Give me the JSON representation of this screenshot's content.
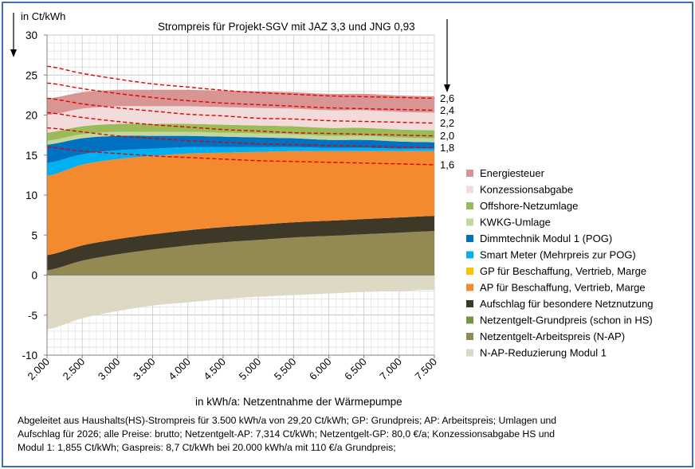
{
  "chart_data": {
    "type": "area",
    "title": "Strompreis für Projekt-SGV mit JAZ 3,3 und JNG  0,93",
    "ylabel": "in Ct/kWh",
    "xlabel": "in kWh/a: Netzentnahme der Wärmepumpe",
    "ylim": [
      -10,
      30
    ],
    "xlim": [
      2000,
      7500
    ],
    "y_ticks": [
      "30",
      "25",
      "20",
      "15",
      "10",
      "5",
      "0",
      "-5",
      "-10"
    ],
    "y_tick_values": [
      30,
      25,
      20,
      15,
      10,
      5,
      0,
      -5,
      -10
    ],
    "x_ticks": [
      "2.000",
      "2.500",
      "3.000",
      "3.500",
      "4.000",
      "4.500",
      "5.000",
      "5.500",
      "6.000",
      "6.500",
      "7.000",
      "7.500"
    ],
    "x_tick_values": [
      2000,
      2500,
      3000,
      3500,
      4000,
      4500,
      5000,
      5500,
      6000,
      6500,
      7000,
      7500
    ],
    "x": [
      2000,
      2500,
      3000,
      3500,
      4000,
      4500,
      5000,
      5500,
      6000,
      6500,
      7000,
      7500
    ],
    "series": [
      {
        "name": "N-AP-Reduzierung Modul 1",
        "color": "#ddd9c4",
        "values": [
          -6.8,
          -5.4,
          -4.5,
          -3.8,
          -3.4,
          -3.0,
          -2.7,
          -2.5,
          -2.3,
          -2.1,
          -2.0,
          -1.8
        ]
      },
      {
        "name": "Netzentgelt-Arbeitspreis (N-AP)",
        "color": "#938953",
        "values": [
          0.6,
          1.8,
          2.6,
          3.2,
          3.7,
          4.1,
          4.4,
          4.7,
          4.9,
          5.1,
          5.3,
          5.5
        ]
      },
      {
        "name": "Netzentgelt-Grundpreis (schon in HS)",
        "color": "#77933c",
        "values": [
          0.0,
          0.0,
          0.0,
          0.0,
          0.0,
          0.0,
          0.0,
          0.0,
          0.0,
          0.0,
          0.0,
          0.0
        ]
      },
      {
        "name": "Aufschlag für besondere Netznutzung",
        "color": "#3d3828",
        "values": [
          1.9,
          1.9,
          1.9,
          1.9,
          1.9,
          1.9,
          1.9,
          1.9,
          1.9,
          1.9,
          1.9,
          1.9
        ]
      },
      {
        "name": "AP für Beschaffung, Vertrieb, Marge",
        "color": "#f38a2f",
        "values": [
          9.9,
          10.1,
          10.0,
          9.8,
          9.6,
          9.3,
          9.1,
          8.9,
          8.7,
          8.5,
          8.3,
          8.1
        ]
      },
      {
        "name": "GP für Beschaffung, Vertrieb, Marge",
        "color": "#ffc000",
        "values": [
          0.0,
          0.0,
          0.0,
          0.0,
          0.0,
          0.0,
          0.0,
          0.0,
          0.0,
          0.0,
          0.0,
          0.0
        ]
      },
      {
        "name": "Smart Meter (Mehrpreis zur POG)",
        "color": "#00b0f0",
        "values": [
          1.6,
          1.3,
          1.1,
          0.9,
          0.8,
          0.7,
          0.6,
          0.5,
          0.4,
          0.4,
          0.3,
          0.3
        ]
      },
      {
        "name": "Dimmtechnik Modul 1 (POG)",
        "color": "#0070c0",
        "values": [
          2.3,
          2.0,
          1.8,
          1.6,
          1.4,
          1.3,
          1.2,
          1.1,
          1.0,
          1.0,
          0.9,
          0.8
        ]
      },
      {
        "name": "KWKG-Umlage",
        "color": "#c3d69b",
        "values": [
          0.5,
          0.5,
          0.5,
          0.5,
          0.5,
          0.5,
          0.5,
          0.5,
          0.5,
          0.5,
          0.5,
          0.5
        ]
      },
      {
        "name": "Offshore-Netzumlage",
        "color": "#9bbb59",
        "values": [
          1.0,
          1.0,
          1.0,
          1.0,
          1.0,
          1.0,
          1.0,
          1.0,
          1.0,
          1.0,
          1.0,
          1.0
        ]
      },
      {
        "name": "Konzessionsabgabe",
        "color": "#f2dcdb",
        "values": [
          2.2,
          2.2,
          2.2,
          2.2,
          2.2,
          2.2,
          2.2,
          2.2,
          2.2,
          2.2,
          2.2,
          2.2
        ]
      },
      {
        "name": "Energiesteuer",
        "color": "#d99594",
        "values": [
          2.05,
          2.05,
          2.05,
          2.05,
          2.05,
          2.05,
          2.05,
          2.05,
          2.05,
          2.05,
          2.05,
          2.05
        ]
      }
    ],
    "legend": [
      "Energiesteuer",
      "Konzessionsabgabe",
      "Offshore-Netzumlage",
      "KWKG-Umlage",
      "Dimmtechnik Modul 1 (POG)",
      "Smart Meter (Mehrpreis zur POG)",
      "GP für Beschaffung, Vertrieb, Marge",
      "AP für Beschaffung, Vertrieb, Marge",
      "Aufschlag für besondere Netznutzung",
      "Netzentgelt-Grundpreis (schon in HS)",
      "Netzentgelt-Arbeitspreis (N-AP)",
      "N-AP-Reduzierung Modul 1"
    ],
    "legend_position": "right",
    "reference_lines": [
      {
        "label": "2,6",
        "color": "#e00000",
        "values": [
          26.1,
          25.2,
          24.5,
          23.9,
          23.5,
          23.1,
          22.8,
          22.6,
          22.4,
          22.3,
          22.2,
          22.1
        ]
      },
      {
        "label": "2,4",
        "color": "#e00000",
        "values": [
          24.0,
          23.3,
          22.7,
          22.2,
          21.8,
          21.5,
          21.3,
          21.1,
          20.9,
          20.8,
          20.7,
          20.6
        ]
      },
      {
        "label": "2,2",
        "color": "#e00000",
        "values": [
          22.1,
          21.4,
          20.9,
          20.5,
          20.1,
          19.9,
          19.6,
          19.5,
          19.3,
          19.2,
          19.1,
          19.0
        ]
      },
      {
        "label": "2,0",
        "color": "#e00000",
        "values": [
          20.3,
          19.7,
          19.2,
          18.8,
          18.5,
          18.2,
          18.0,
          17.8,
          17.7,
          17.6,
          17.5,
          17.4
        ]
      },
      {
        "label": "1,8",
        "color": "#e00000",
        "values": [
          18.4,
          17.9,
          17.4,
          17.1,
          16.8,
          16.6,
          16.4,
          16.3,
          16.2,
          16.1,
          16.0,
          15.9
        ]
      },
      {
        "label": "1,6",
        "color": "#e00000",
        "values": [
          16.0,
          15.5,
          15.2,
          14.9,
          14.7,
          14.5,
          14.3,
          14.2,
          14.1,
          14.0,
          13.9,
          13.8
        ]
      }
    ]
  },
  "footnote": {
    "line1": "Abgeleitet  aus Haushalts(HS)-Strompreis für 3.500 kWh/a von 29,20 Ct/kWh; GP: Grundpreis;  AP: Arbeitspreis;  Umlagen und",
    "line2": "Aufschlag für 2026;  alle Preise: brutto; Netzentgelt-AP:  7,314 Ct/kWh; Netzentgelt-GP:  80,0 €/a; Konzessionsabgabe HS und",
    "line3": "Modul 1: 1,855 Ct/kWh; Gaspreis: 8,7 Ct/kWh bei 20.000 kWh/a mit 110 €/a Grundpreis;"
  },
  "colors": {
    "frame": "#3d6fb4",
    "reference": "#e00000"
  }
}
